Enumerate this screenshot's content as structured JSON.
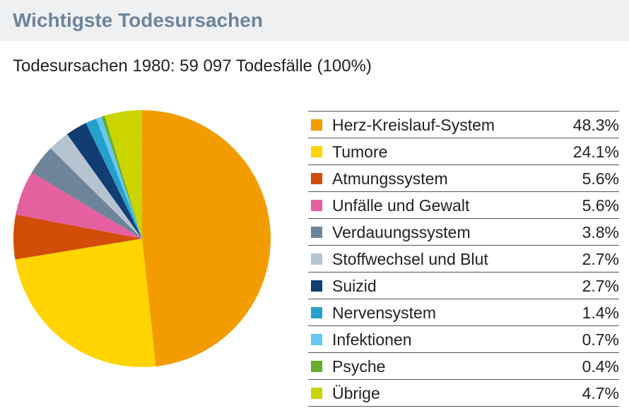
{
  "header": {
    "title": "Wichtigste Todesursachen",
    "subtitle": "Todesursachen 1980: 59 097 Todesfälle (100%)"
  },
  "chart_data": {
    "type": "pie",
    "title": "Wichtigste Todesursachen",
    "subtitle": "Todesursachen 1980: 59 097 Todesfälle (100%)",
    "legend_position": "right",
    "slices": [
      {
        "label": "Herz-Kreislauf-System",
        "value": 48.3,
        "display": "48.3%",
        "color": "#f39c00"
      },
      {
        "label": "Tumore",
        "value": 24.1,
        "display": "24.1%",
        "color": "#ffd400"
      },
      {
        "label": "Atmungssystem",
        "value": 5.6,
        "display": "5.6%",
        "color": "#d24d07"
      },
      {
        "label": "Unfälle und Gewalt",
        "value": 5.6,
        "display": "5.6%",
        "color": "#e5609e"
      },
      {
        "label": "Verdauungssystem",
        "value": 3.8,
        "display": "3.8%",
        "color": "#6e8599"
      },
      {
        "label": "Stoffwechsel und Blut",
        "value": 2.7,
        "display": "2.7%",
        "color": "#b6c4d2"
      },
      {
        "label": "Suizid",
        "value": 2.7,
        "display": "2.7%",
        "color": "#123d72"
      },
      {
        "label": "Nervensystem",
        "value": 1.4,
        "display": "1.4%",
        "color": "#25a0cc"
      },
      {
        "label": "Infektionen",
        "value": 0.7,
        "display": "0.7%",
        "color": "#64c8f0"
      },
      {
        "label": "Psyche",
        "value": 0.4,
        "display": "0.4%",
        "color": "#66ad2a"
      },
      {
        "label": "Übrige",
        "value": 4.7,
        "display": "4.7%",
        "color": "#c9d400"
      }
    ]
  }
}
